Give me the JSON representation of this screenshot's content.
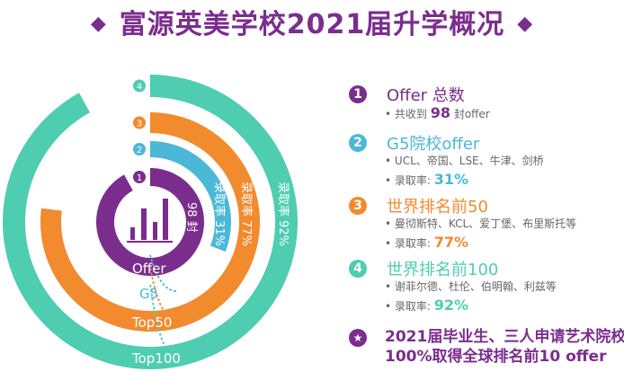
{
  "title": "富源英美学校2021届升学概况",
  "title_deco": "◆",
  "colors": {
    "purple": "#7b2d8e",
    "blue": "#4bb8d8",
    "orange": "#f28a2e",
    "teal": "#4ecdb0"
  },
  "chart_data": {
    "type": "radial-bar",
    "rings": [
      {
        "num": "1",
        "label": "Offer",
        "value_text": "98 封",
        "rate": 0.92,
        "color": "#7b2d8e"
      },
      {
        "num": "2",
        "label": "G5",
        "value_text": "录取率 31%",
        "rate": 0.31,
        "color": "#4bb8d8"
      },
      {
        "num": "3",
        "label": "Top50",
        "value_text": "录取率 77%",
        "rate": 0.77,
        "color": "#f28a2e"
      },
      {
        "num": "4",
        "label": "Top100",
        "value_text": "录取率 92%",
        "rate": 0.92,
        "color": "#4ecdb0"
      }
    ]
  },
  "list": [
    {
      "num": "1",
      "title": "Offer 总数",
      "subs": [
        {
          "prefix": "共收到 ",
          "big": "98",
          "suffix": " 封offer"
        }
      ]
    },
    {
      "num": "2",
      "title": "G5院校offer",
      "subs": [
        {
          "prefix": "UCL、帝国、LSE、牛津、剑桥"
        },
        {
          "prefix": "录取率: ",
          "big": "31%"
        }
      ]
    },
    {
      "num": "3",
      "title": "世界排名前50",
      "subs": [
        {
          "prefix": "曼彻斯特、KCL、爱丁堡、布里斯托等"
        },
        {
          "prefix": "录取率: ",
          "big": "77%"
        }
      ]
    },
    {
      "num": "4",
      "title": "世界排名前100",
      "subs": [
        {
          "prefix": "谢菲尔德、杜伦、伯明翰、利兹等"
        },
        {
          "prefix": "录取率: ",
          "big": "92%"
        }
      ]
    }
  ],
  "final": {
    "icon": "★",
    "line1": "2021届毕业生、三人申请艺术院校",
    "line2": "100%取得全球排名前10 offer"
  }
}
